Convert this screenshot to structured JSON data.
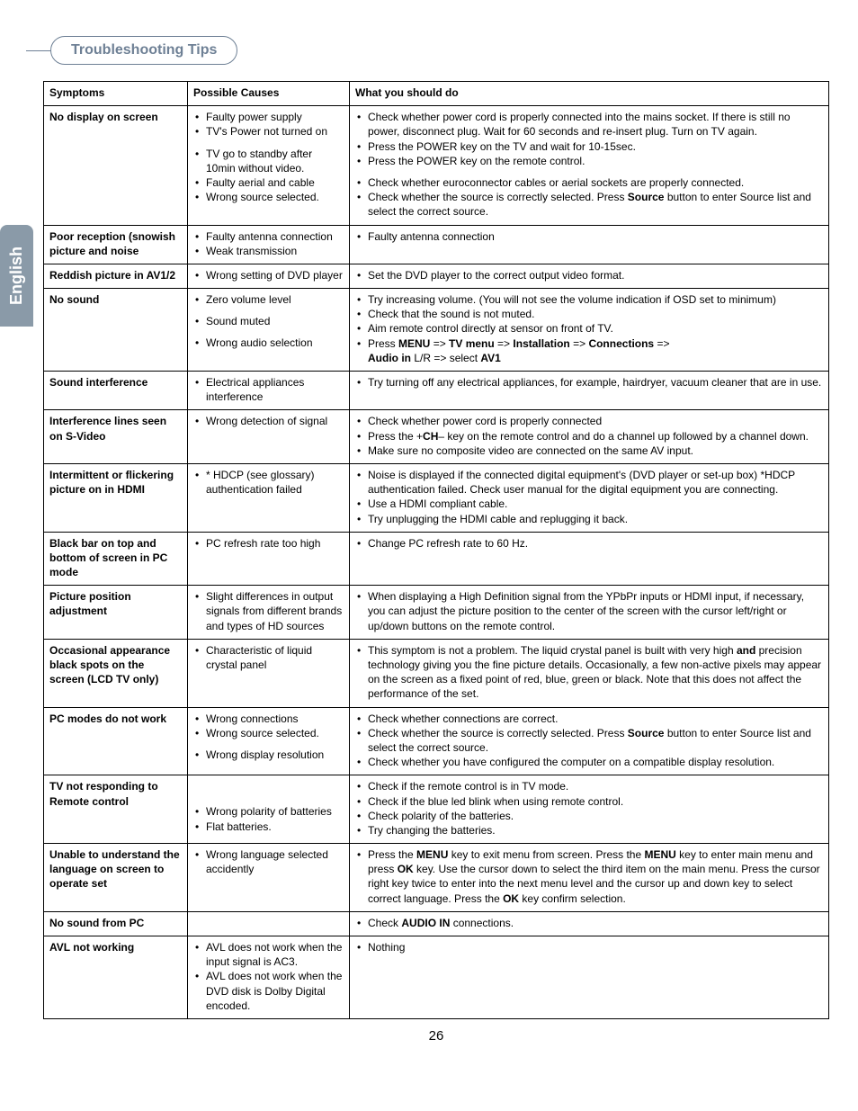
{
  "lang_tab": "English",
  "section_title": "Troubleshooting Tips",
  "page_number": "26",
  "headers": {
    "symptoms": "Symptoms",
    "causes": "Possible Causes",
    "actions": "What you should do"
  },
  "rows": [
    {
      "symptom": "No display on screen",
      "causes_html": "<ul><li>Faulty power supply</li><li>TV's Power not turned on</li><li style='margin-top:8px'>TV go to standby after 10min without video.</li><li>Faulty aerial and cable</li><li>Wrong source selected.</li></ul>",
      "actions_html": "<ul><li>Check whether power cord is properly connected into the mains socket. If there is still no power, disconnect plug. Wait for 60 seconds and re-insert  plug. Turn on TV again.</li><li>Press the POWER key on the TV and wait for 10-15sec.</li><li>Press the POWER key on the remote control.</li><li style='margin-top:8px'>Check whether euroconnector cables or aerial sockets are properly connected.</li><li>Check whether the source is correctly selected. Press  <b>Source</b> button to enter Source list and select the correct source.</li></ul>"
    },
    {
      "symptom": "Poor reception (snowish picture and noise",
      "causes_html": "<ul><li>Faulty antenna connection</li><li>Weak transmission</li></ul>",
      "actions_html": "<ul><li>Faulty antenna connection</li></ul>"
    },
    {
      "symptom": "Reddish picture in AV1/2",
      "causes_html": "<ul><li>Wrong setting of DVD player</li></ul>",
      "actions_html": "<ul><li>Set the DVD player to the correct output video format.</li></ul>"
    },
    {
      "symptom": "No sound",
      "causes_html": "<ul><li>Zero volume level</li><li style='margin-top:8px'>Sound muted</li><li style='margin-top:8px'>Wrong audio selection</li></ul>",
      "actions_html": "<ul><li>Try increasing volume. (You will not see the volume indication if OSD set to minimum)</li><li>Check that the sound is not muted.</li><li>Aim remote control directly at sensor on front of TV.</li><li>Press <b>MENU</b> =&gt; <b>TV menu</b> =&gt; <b>Installation</b> =&gt; <b>Connections</b> =&gt;<br><b>Audio in</b> L/R =&gt; select <b>AV1</b></li></ul>"
    },
    {
      "symptom": "Sound interference",
      "causes_html": "<ul><li>Electrical appliances interference</li></ul>",
      "actions_html": "<ul><li>Try turning off any electrical appliances, for example, hairdryer, vacuum cleaner that are in use.</li></ul>"
    },
    {
      "symptom": "Interference lines seen on S-Video",
      "causes_html": "<ul><li>Wrong detection of signal</li></ul>",
      "actions_html": "<ul><li>Check whether power cord is properly connected</li><li>Press the +<b>CH</b>– key on the remote control and do a channel up followed by a channel down.</li><li>Make sure no composite video are connected on the same AV input.</li></ul>"
    },
    {
      "symptom": "Intermittent or flickering picture on in HDMI",
      "causes_html": "<ul><li>* HDCP (see glossary) authentication failed</li></ul>",
      "actions_html": "<ul><li>Noise is displayed if the connected digital equipment's (DVD player or set-up box) *HDCP authentication failed. Check user manual for the digital equipment you are connecting.</li><li>Use a HDMI compliant cable.</li><li>Try unplugging the HDMI cable and replugging it back.</li></ul>"
    },
    {
      "symptom": "Black bar on top and bottom of screen in PC mode",
      "causes_html": "<ul><li>PC refresh rate too high</li></ul>",
      "actions_html": "<ul><li>Change PC refresh rate to 60 Hz.</li></ul>"
    },
    {
      "symptom": "Picture position adjustment",
      "causes_html": "<ul><li>Slight differences in output signals from different brands and types of HD sources</li></ul>",
      "actions_html": "<ul><li>When displaying a High Definition signal from the YPbPr inputs or HDMI input, if necessary, you can adjust the picture position to the center of the screen with the cursor left/right or up/down buttons on the remote control.</li></ul>"
    },
    {
      "symptom": "Occasional appearance black spots on the screen (LCD TV only)",
      "causes_html": "<ul><li>Characteristic of liquid crystal panel</li></ul>",
      "actions_html": "<ul><li>This symptom is not a problem. The liquid crystal panel is built with very high <b>and</b> precision technology giving you the fine picture details. Occasionally, a few non-active pixels may appear on the screen as a fixed point of red, blue, green or black. Note that this does not affect the performance of the set.</li></ul>"
    },
    {
      "symptom": "PC modes do not work",
      "causes_html": "<ul><li>Wrong connections</li><li>Wrong source selected.</li><li style='margin-top:8px'>Wrong display resolution</li></ul>",
      "actions_html": "<ul><li>Check whether connections are correct.</li><li>Check whether the source is correctly selected. Press <b>Source</b> button to enter Source list and select the correct source.</li><li>Check whether you have configured the computer on a compatible display resolution.</li></ul>"
    },
    {
      "symptom": "TV not responding to Remote control",
      "causes_html": "<ul style='margin-top:28px'><li>Wrong polarity of batteries</li><li>Flat batteries.</li></ul>",
      "actions_html": "<ul><li>Check if the remote control is in TV mode.</li><li>Check if the blue led blink when using remote control.</li><li>Check polarity of the batteries.</li><li>Try changing the batteries.</li></ul>"
    },
    {
      "symptom": "Unable to understand the language on screen to operate set",
      "causes_html": "<ul><li>Wrong language selected accidently</li></ul>",
      "actions_html": "<ul><li>Press the <b>MENU</b> key to exit menu from screen. Press the <b>MENU</b> key to enter main menu and press <b>OK</b> key. Use the cursor down to select the third item on the main menu. Press the cursor right key twice to enter into the next menu level and the cursor up and down key to select correct language. Press the <b>OK</b> key confirm selection.</li></ul>"
    },
    {
      "symptom": "No sound from PC",
      "causes_html": "",
      "actions_html": "<ul><li>Check <b>AUDIO IN</b> connections.</li></ul>"
    },
    {
      "symptom": "AVL not working",
      "causes_html": "<ul><li>AVL does not work when the input signal is AC3.</li><li>AVL does not work when the DVD disk is Dolby Digital encoded.</li></ul>",
      "actions_html": "<ul><li>Nothing</li></ul>"
    }
  ]
}
